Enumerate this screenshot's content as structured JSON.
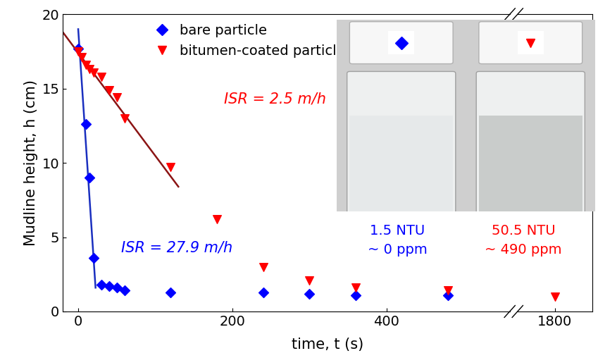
{
  "chart_data": [
    {
      "type": "scatter",
      "x_label": "time, t (s)",
      "y_label": "Mudline height, h (cm)",
      "xlim": [
        -20,
        560
      ],
      "xticks": [
        0,
        200,
        400
      ],
      "ylim": [
        0,
        20
      ],
      "yticks": [
        0,
        5,
        10,
        15,
        20
      ],
      "legend": "upper left",
      "series": [
        {
          "name": "bare particle",
          "color": "#0000ff",
          "marker": "diamond",
          "x": [
            0,
            10,
            15,
            20,
            30,
            40,
            50,
            60,
            120,
            240,
            300,
            360,
            480
          ],
          "values": [
            17.7,
            12.6,
            9.0,
            3.6,
            1.8,
            1.7,
            1.6,
            1.4,
            1.3,
            1.3,
            1.2,
            1.1,
            1.1
          ]
        },
        {
          "name": "bitumen-coated particle",
          "color": "#ff0000",
          "marker": "triangle_down",
          "x": [
            0,
            5,
            10,
            15,
            20,
            30,
            40,
            50,
            60,
            120,
            180,
            240,
            300,
            360,
            480
          ],
          "values": [
            17.5,
            17.1,
            16.6,
            16.3,
            16.1,
            15.8,
            14.9,
            14.4,
            13.0,
            9.7,
            6.2,
            3.0,
            2.1,
            1.6,
            1.4
          ]
        },
        {
          "type": "line",
          "color": "#1a2fbf",
          "x": [
            0,
            22.5
          ],
          "values": [
            19.0,
            1.6
          ]
        },
        {
          "type": "line",
          "color": "#8b1414",
          "x": [
            -20,
            130
          ],
          "values": [
            18.8,
            8.4
          ]
        }
      ],
      "annotations": [
        {
          "text": "ISR = 2.5 m/h",
          "color": "#ff0000"
        },
        {
          "text": "ISR = 27.9 m/h",
          "color": "#0000ff"
        }
      ],
      "inset_labels": [
        {
          "text": "1.5 NTU",
          "color": "#0000ff"
        },
        {
          "text": "~ 0 ppm",
          "color": "#0000ff"
        },
        {
          "text": "50.5 NTU",
          "color": "#ff0000"
        },
        {
          "text": "~ 490 ppm",
          "color": "#ff0000"
        }
      ]
    },
    {
      "type": "scatter",
      "xlim": [
        1750,
        1850
      ],
      "xticks": [
        1800
      ],
      "ylim": [
        0,
        20
      ],
      "yticks": [
        0,
        5,
        10,
        15,
        20
      ],
      "tick_labels": "x",
      "series": [
        {
          "color": "#ff0000",
          "marker": "triangle_down",
          "x": [
            1800
          ],
          "values": [
            1.0
          ]
        }
      ]
    }
  ]
}
